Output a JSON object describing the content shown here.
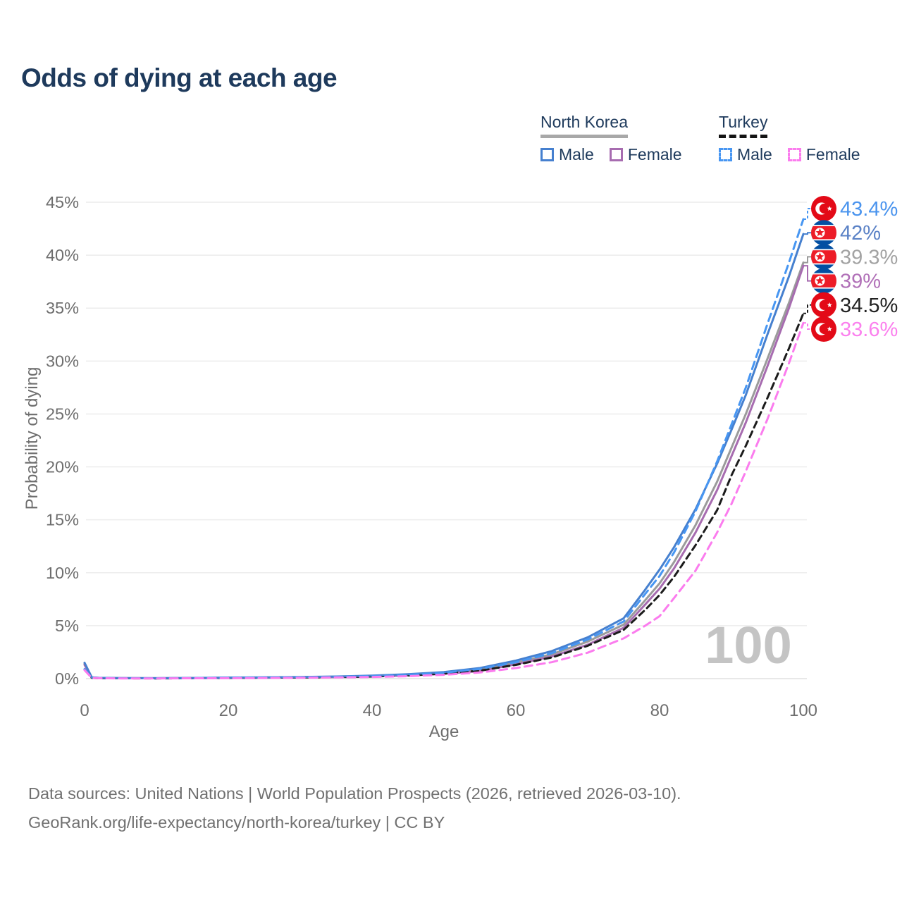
{
  "title": "Odds of dying at each age",
  "legend": {
    "groups": [
      {
        "id": "north-korea",
        "label": "North Korea",
        "line_style": "solid",
        "line_color": "#a8a8a8",
        "items": [
          {
            "label": "Male",
            "color": "#4680cf"
          },
          {
            "label": "Female",
            "color": "#a76cb0"
          }
        ]
      },
      {
        "id": "turkey",
        "label": "Turkey",
        "line_style": "dashed",
        "line_color": "#141414",
        "items": [
          {
            "label": "Male",
            "color": "#4796f2"
          },
          {
            "label": "Female",
            "color": "#fb7cee"
          }
        ]
      }
    ]
  },
  "chart_data": {
    "type": "line",
    "title": "Odds of dying at each age",
    "xlabel": "Age",
    "ylabel": "Probability of dying",
    "xlim": [
      0,
      100
    ],
    "ylim": [
      0,
      45
    ],
    "xticks": [
      0,
      20,
      40,
      60,
      80,
      100
    ],
    "yticks": [
      0,
      5,
      10,
      15,
      20,
      25,
      30,
      35,
      40,
      45
    ],
    "ytick_suffix": "%",
    "grid": "horizontal",
    "legend_position": "top-right",
    "watermark": "100",
    "ages": [
      0,
      1,
      2,
      5,
      10,
      15,
      20,
      25,
      30,
      35,
      40,
      45,
      50,
      55,
      60,
      65,
      70,
      75,
      78,
      80,
      82,
      85,
      88,
      90,
      92,
      95,
      98,
      100
    ],
    "series": [
      {
        "id": "turkey-male",
        "country": "Turkey",
        "sex": "Male",
        "flag": "turkey",
        "color": "#4796f2",
        "label_color": "#4a94ee",
        "dashed": true,
        "end_label": "43.4%",
        "end_value": 43.4,
        "values": [
          0.9,
          0.08,
          0.05,
          0.03,
          0.03,
          0.05,
          0.09,
          0.11,
          0.13,
          0.17,
          0.24,
          0.36,
          0.55,
          0.92,
          1.55,
          2.4,
          3.7,
          5.4,
          8.0,
          9.7,
          11.9,
          15.8,
          20.5,
          24.0,
          27.5,
          33.5,
          39.3,
          43.4
        ]
      },
      {
        "id": "north-korea-male",
        "country": "North Korea",
        "sex": "Male",
        "flag": "north-korea",
        "color": "#4680cf",
        "label_color": "#5b82c6",
        "dashed": false,
        "end_label": "42%",
        "end_value": 42,
        "values": [
          1.5,
          0.12,
          0.07,
          0.05,
          0.04,
          0.06,
          0.1,
          0.12,
          0.15,
          0.2,
          0.28,
          0.42,
          0.62,
          1.0,
          1.7,
          2.6,
          3.9,
          5.7,
          8.4,
          10.3,
          12.4,
          16.0,
          20.3,
          23.5,
          26.8,
          32.5,
          38.0,
          42.0
        ]
      },
      {
        "id": "north-korea-all",
        "country": "North Korea",
        "sex": "All",
        "flag": "north-korea",
        "color": "#9b9b9b",
        "label_color": "#a3a3a3",
        "dashed": false,
        "end_label": "39.3%",
        "end_value": 39.3,
        "values": [
          1.4,
          0.11,
          0.06,
          0.04,
          0.04,
          0.05,
          0.08,
          0.1,
          0.13,
          0.17,
          0.24,
          0.36,
          0.54,
          0.85,
          1.5,
          2.3,
          3.5,
          5.1,
          7.4,
          9.0,
          11.0,
          14.5,
          18.6,
          21.8,
          25.0,
          30.2,
          35.5,
          39.3
        ]
      },
      {
        "id": "north-korea-female",
        "country": "North Korea",
        "sex": "Female",
        "flag": "north-korea",
        "color": "#a76cb0",
        "label_color": "#b171b8",
        "dashed": false,
        "end_label": "39%",
        "end_value": 39,
        "values": [
          1.3,
          0.1,
          0.06,
          0.04,
          0.03,
          0.04,
          0.06,
          0.08,
          0.11,
          0.14,
          0.2,
          0.3,
          0.46,
          0.72,
          1.35,
          2.1,
          3.2,
          4.8,
          7.0,
          8.5,
          10.4,
          13.8,
          17.8,
          21.0,
          24.2,
          29.5,
          35.0,
          39.0
        ]
      },
      {
        "id": "turkey-all",
        "country": "Turkey",
        "sex": "All",
        "flag": "turkey",
        "color": "#1c1c1c",
        "label_color": "#222222",
        "dashed": true,
        "end_label": "34.5%",
        "end_value": 34.5,
        "values": [
          0.85,
          0.07,
          0.04,
          0.03,
          0.02,
          0.04,
          0.07,
          0.09,
          0.11,
          0.14,
          0.2,
          0.3,
          0.47,
          0.75,
          1.3,
          2.0,
          3.1,
          4.6,
          6.5,
          7.9,
          9.6,
          12.6,
          15.9,
          19.2,
          22.0,
          26.5,
          31.2,
          34.5
        ]
      },
      {
        "id": "turkey-female",
        "country": "Turkey",
        "sex": "Female",
        "flag": "turkey",
        "color": "#fb7cee",
        "label_color": "#fb80ee",
        "dashed": true,
        "end_label": "33.6%",
        "end_value": 33.6,
        "values": [
          0.8,
          0.06,
          0.04,
          0.02,
          0.02,
          0.03,
          0.04,
          0.06,
          0.08,
          0.11,
          0.15,
          0.23,
          0.36,
          0.58,
          1.0,
          1.55,
          2.45,
          3.8,
          5.0,
          5.9,
          7.6,
          10.2,
          13.8,
          16.5,
          19.6,
          24.5,
          29.8,
          33.6
        ]
      }
    ]
  },
  "footer": {
    "line1": "Data sources: United Nations | World Population Prospects (2026, retrieved 2026-03-10).",
    "line2": "GeoRank.org/life-expectancy/north-korea/turkey | CC BY"
  }
}
